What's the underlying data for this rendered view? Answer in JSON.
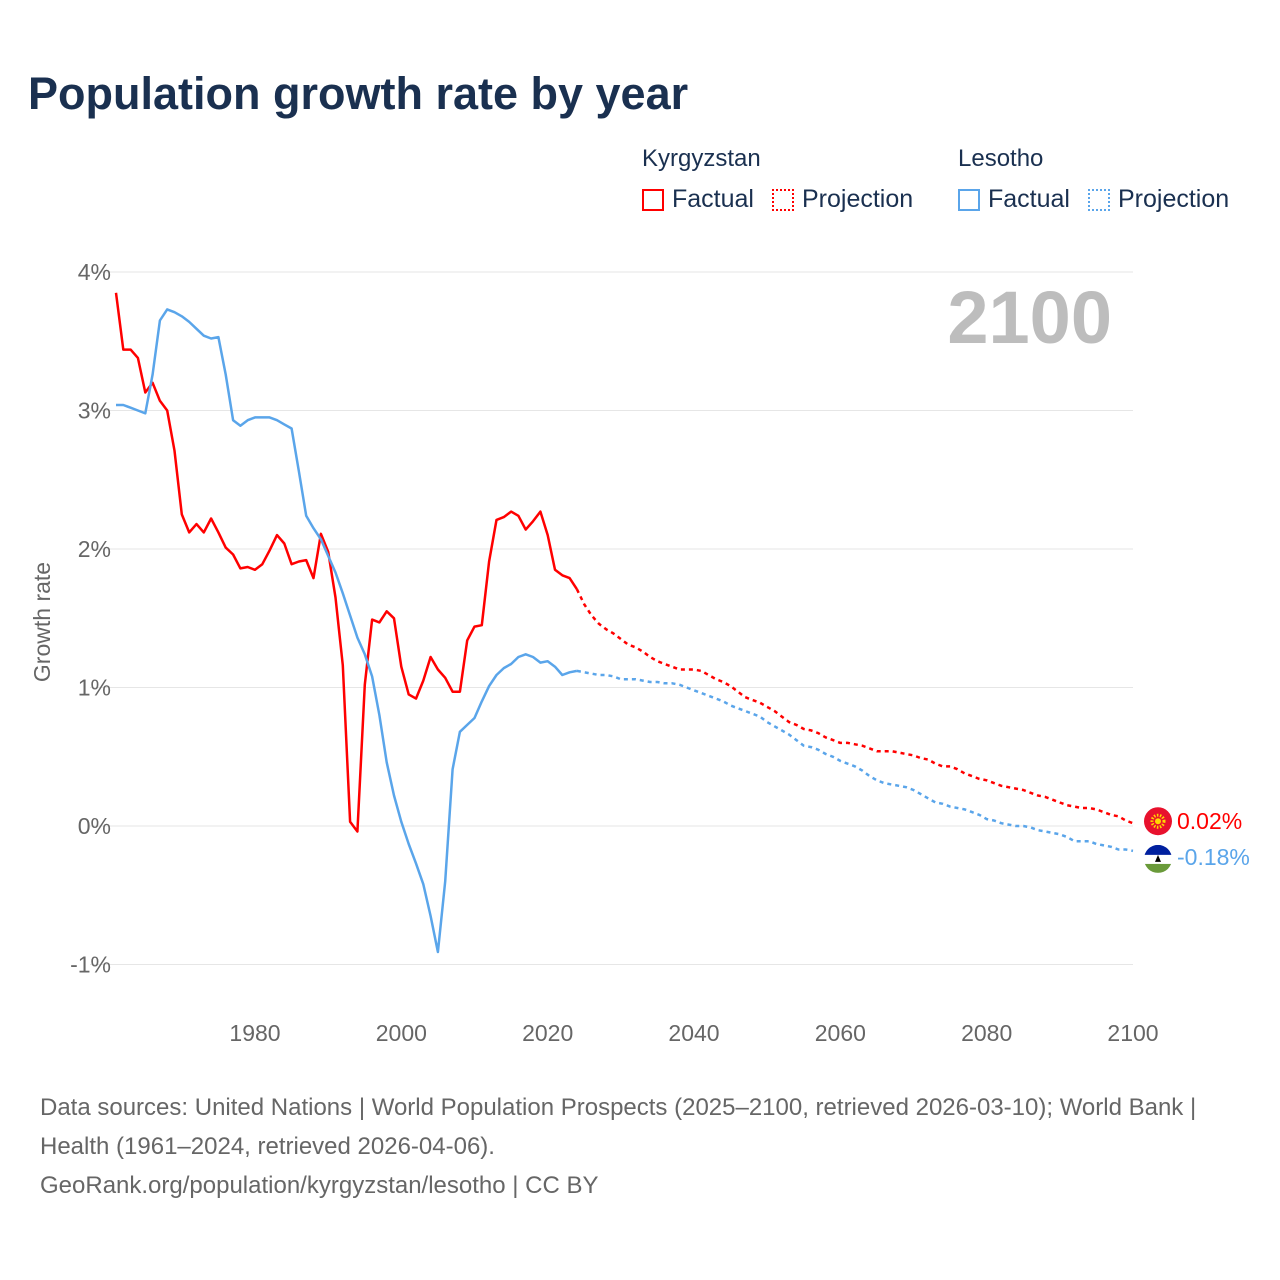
{
  "title": "Population growth rate by year",
  "legend": {
    "groups": [
      {
        "name": "Kyrgyzstan",
        "color": "#ff0000",
        "factual": "Factual",
        "projection": "Projection"
      },
      {
        "name": "Lesotho",
        "color": "#5aa5ea",
        "factual": "Factual",
        "projection": "Projection"
      }
    ]
  },
  "year_label": "2100",
  "footer": {
    "sources": "Data sources: United Nations | World Population Prospects (2025–2100, retrieved 2026-03-10); World Bank | Health (1961–2024, retrieved 2026-04-06).",
    "link": "GeoRank.org/population/kyrgyzstan/lesotho | CC BY"
  },
  "chart_data": {
    "type": "line",
    "title": "Population growth rate by year",
    "xlabel": "",
    "ylabel": "Growth rate",
    "xlim": [
      1961,
      2100
    ],
    "ylim": [
      -1.3,
      4.2
    ],
    "xticks": [
      1980,
      2000,
      2020,
      2040,
      2060,
      2080,
      2100
    ],
    "xtick_labels": [
      "1980",
      "2000",
      "2020",
      "2040",
      "2060",
      "2080",
      "2100"
    ],
    "yticks": [
      4,
      3,
      2,
      1,
      0,
      -1
    ],
    "ytick_labels": [
      "4%",
      "3%",
      "2%",
      "1%",
      "0%",
      "-1%"
    ],
    "grid": true,
    "legend_position": "top-right",
    "series": [
      {
        "name": "Kyrgyzstan Factual",
        "country": "Kyrgyzstan",
        "kind": "factual",
        "color": "#ff0000",
        "start_year": 1961,
        "values": [
          3.85,
          3.44,
          3.44,
          3.38,
          3.13,
          3.2,
          3.07,
          3.0,
          2.71,
          2.25,
          2.12,
          2.18,
          2.12,
          2.22,
          2.12,
          2.01,
          1.96,
          1.86,
          1.87,
          1.85,
          1.89,
          1.99,
          2.1,
          2.04,
          1.89,
          1.91,
          1.92,
          1.79,
          2.11,
          1.98,
          1.65,
          1.16,
          0.03,
          -0.04,
          1.02,
          1.49,
          1.47,
          1.55,
          1.5,
          1.15,
          0.95,
          0.92,
          1.05,
          1.22,
          1.13,
          1.07,
          0.97,
          0.97,
          1.34,
          1.44,
          1.45,
          1.91,
          2.21,
          2.23,
          2.27,
          2.24,
          2.14,
          2.2,
          2.27,
          2.1,
          1.85,
          1.81,
          1.79,
          1.71
        ]
      },
      {
        "name": "Kyrgyzstan Projection",
        "country": "Kyrgyzstan",
        "kind": "projection",
        "color": "#ff0000",
        "start_year": 2024,
        "values": [
          1.71,
          1.6,
          1.52,
          1.46,
          1.42,
          1.39,
          1.35,
          1.31,
          1.29,
          1.26,
          1.22,
          1.19,
          1.17,
          1.15,
          1.13,
          1.13,
          1.13,
          1.12,
          1.09,
          1.06,
          1.04,
          1.01,
          0.97,
          0.93,
          0.91,
          0.89,
          0.86,
          0.83,
          0.79,
          0.75,
          0.73,
          0.7,
          0.69,
          0.67,
          0.64,
          0.62,
          0.6,
          0.6,
          0.59,
          0.58,
          0.56,
          0.54,
          0.54,
          0.54,
          0.53,
          0.52,
          0.51,
          0.49,
          0.48,
          0.45,
          0.43,
          0.43,
          0.41,
          0.38,
          0.36,
          0.34,
          0.33,
          0.31,
          0.29,
          0.28,
          0.27,
          0.26,
          0.24,
          0.22,
          0.21,
          0.19,
          0.17,
          0.15,
          0.14,
          0.13,
          0.13,
          0.12,
          0.1,
          0.08,
          0.07,
          0.04,
          0.02
        ],
        "end_label": "0.02%"
      },
      {
        "name": "Lesotho Factual",
        "country": "Lesotho",
        "kind": "factual",
        "color": "#5aa5ea",
        "start_year": 1961,
        "values": [
          3.04,
          3.04,
          3.02,
          3.0,
          2.98,
          3.26,
          3.65,
          3.73,
          3.71,
          3.68,
          3.64,
          3.59,
          3.54,
          3.52,
          3.53,
          3.26,
          2.93,
          2.89,
          2.93,
          2.95,
          2.95,
          2.95,
          2.93,
          2.9,
          2.87,
          2.56,
          2.24,
          2.15,
          2.07,
          1.95,
          1.83,
          1.68,
          1.52,
          1.36,
          1.24,
          1.08,
          0.8,
          0.46,
          0.22,
          0.03,
          -0.13,
          -0.27,
          -0.42,
          -0.65,
          -0.91,
          -0.4,
          0.41,
          0.68,
          0.73,
          0.78,
          0.9,
          1.01,
          1.09,
          1.14,
          1.17,
          1.22,
          1.24,
          1.22,
          1.18,
          1.19,
          1.15,
          1.09,
          1.11,
          1.12
        ]
      },
      {
        "name": "Lesotho Projection",
        "country": "Lesotho",
        "kind": "projection",
        "color": "#5aa5ea",
        "start_year": 2024,
        "values": [
          1.12,
          1.11,
          1.1,
          1.09,
          1.09,
          1.08,
          1.06,
          1.06,
          1.06,
          1.05,
          1.04,
          1.04,
          1.03,
          1.03,
          1.02,
          1.0,
          0.98,
          0.96,
          0.94,
          0.92,
          0.9,
          0.87,
          0.85,
          0.83,
          0.81,
          0.79,
          0.75,
          0.72,
          0.69,
          0.66,
          0.62,
          0.58,
          0.57,
          0.55,
          0.52,
          0.5,
          0.47,
          0.45,
          0.43,
          0.4,
          0.36,
          0.33,
          0.31,
          0.3,
          0.29,
          0.28,
          0.26,
          0.23,
          0.2,
          0.17,
          0.16,
          0.14,
          0.13,
          0.12,
          0.1,
          0.08,
          0.05,
          0.04,
          0.02,
          0.01,
          0.0,
          0.0,
          -0.01,
          -0.03,
          -0.04,
          -0.05,
          -0.06,
          -0.08,
          -0.11,
          -0.11,
          -0.11,
          -0.13,
          -0.14,
          -0.15,
          -0.17,
          -0.17,
          -0.18
        ],
        "end_label": "-0.18%"
      }
    ]
  }
}
